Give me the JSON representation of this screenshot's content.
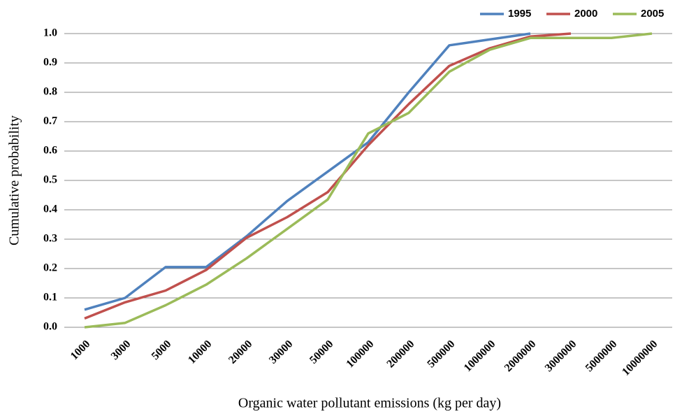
{
  "chart_data": {
    "type": "line",
    "x_label": "Organic water pollutant emissions (kg per day)",
    "y_label": "Cumulative probability",
    "categories": [
      "1000",
      "3000",
      "5000",
      "10000",
      "20000",
      "30000",
      "50000",
      "100000",
      "200000",
      "500000",
      "1000000",
      "2000000",
      "3000000",
      "5000000",
      "10000000"
    ],
    "series": [
      {
        "name": "1995",
        "color": "#4f81bd",
        "values": [
          0.06,
          0.1,
          0.205,
          0.205,
          0.31,
          0.43,
          0.53,
          0.63,
          0.8,
          0.96,
          0.98,
          1.0,
          null,
          null,
          null
        ]
      },
      {
        "name": "2000",
        "color": "#c0504d",
        "values": [
          0.03,
          0.085,
          0.125,
          0.195,
          0.305,
          0.375,
          0.46,
          0.62,
          0.76,
          0.89,
          0.95,
          0.99,
          1.0,
          null,
          null
        ]
      },
      {
        "name": "2005",
        "color": "#9bbb59",
        "values": [
          0.0,
          0.015,
          0.075,
          0.145,
          0.235,
          0.335,
          0.435,
          0.66,
          0.73,
          0.87,
          0.945,
          0.985,
          0.985,
          0.985,
          1.0
        ]
      }
    ],
    "ylim": [
      0,
      1
    ],
    "yticks": [
      {
        "value": 0,
        "label": "0.0"
      },
      0.1,
      0.2,
      0.3,
      0.4,
      0.5,
      0.6,
      0.7,
      0.8,
      0.9,
      {
        "value": 1,
        "label": "1.0"
      }
    ],
    "grid": true,
    "legend": "top-right"
  }
}
